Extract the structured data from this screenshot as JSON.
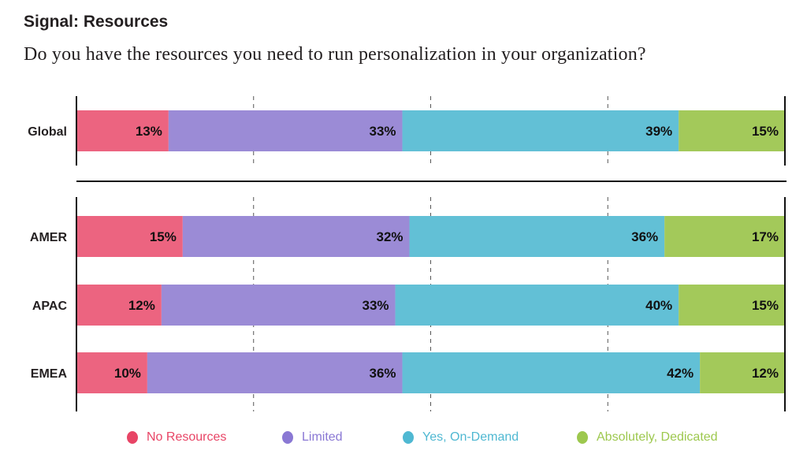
{
  "chart_data": {
    "type": "bar",
    "orientation": "horizontal",
    "stacked": true,
    "title": "Signal: Resources",
    "subtitle": "Do you have the resources you need to run personalization in your organization?",
    "categories": [
      "Global",
      "AMER",
      "APAC",
      "EMEA"
    ],
    "series": [
      {
        "name": "No Resources",
        "color": "#ec6480",
        "legend_color": "#e84566",
        "values": [
          13,
          15,
          12,
          10
        ]
      },
      {
        "name": "Limited",
        "color": "#9b8bd6",
        "legend_color": "#8a78d4",
        "values": [
          33,
          32,
          33,
          36
        ]
      },
      {
        "name": "Yes, On-Demand",
        "color": "#62c0d6",
        "legend_color": "#4fb8d2",
        "values": [
          39,
          36,
          40,
          42
        ]
      },
      {
        "name": "Absolutely, Dedicated",
        "color": "#a3c95a",
        "legend_color": "#9dc84e",
        "values": [
          15,
          17,
          15,
          12
        ]
      }
    ],
    "value_format": "percent",
    "xlim": [
      0,
      100
    ],
    "gridlines": [
      25,
      50,
      75
    ],
    "grid": "dashed vertical",
    "legend_position": "bottom"
  }
}
